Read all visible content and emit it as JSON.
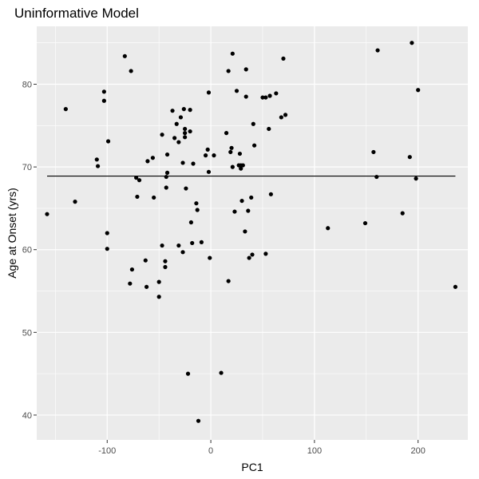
{
  "chart_data": {
    "type": "scatter",
    "title": "Uninformative Model",
    "xlabel": "PC1",
    "ylabel": "Age at Onset (yrs)",
    "xlim": [
      -168,
      248
    ],
    "ylim": [
      37,
      87
    ],
    "x_ticks": [
      -100,
      0,
      100,
      200
    ],
    "x_tick_labels": [
      "-100",
      "0",
      "100",
      "200"
    ],
    "y_ticks": [
      40,
      50,
      60,
      70,
      80
    ],
    "y_tick_labels": [
      "40",
      "50",
      "60",
      "70",
      "80"
    ],
    "grid": true,
    "background": "#ebebeb",
    "grid_color": "#ffffff",
    "point_color": "#000000",
    "fit_line": {
      "x": [
        -158,
        236
      ],
      "y": [
        68.9,
        68.9
      ],
      "color": "#000000"
    },
    "points": [
      [
        -158,
        64.3
      ],
      [
        -140,
        77.0
      ],
      [
        -131,
        65.8
      ],
      [
        -110,
        70.9
      ],
      [
        -109,
        70.1
      ],
      [
        -103,
        79.1
      ],
      [
        -103,
        78.0
      ],
      [
        -99,
        73.1
      ],
      [
        -100,
        62.0
      ],
      [
        -100,
        60.1
      ],
      [
        -83,
        83.4
      ],
      [
        -77,
        81.6
      ],
      [
        -78,
        55.9
      ],
      [
        -76,
        57.6
      ],
      [
        -72,
        68.7
      ],
      [
        -71,
        66.4
      ],
      [
        -69,
        68.4
      ],
      [
        -63,
        58.7
      ],
      [
        -62,
        55.5
      ],
      [
        -61,
        70.7
      ],
      [
        -56,
        71.1
      ],
      [
        -55,
        66.3
      ],
      [
        -50,
        56.1
      ],
      [
        -50,
        54.3
      ],
      [
        -47,
        73.9
      ],
      [
        -47,
        60.5
      ],
      [
        -44,
        57.9
      ],
      [
        -44,
        58.6
      ],
      [
        -43,
        68.8
      ],
      [
        -43,
        67.5
      ],
      [
        -42,
        69.3
      ],
      [
        -42,
        71.5
      ],
      [
        -37,
        76.8
      ],
      [
        -35,
        73.5
      ],
      [
        -33,
        75.2
      ],
      [
        -31,
        73.0
      ],
      [
        -31,
        60.5
      ],
      [
        -29,
        76.0
      ],
      [
        -27,
        59.7
      ],
      [
        -27,
        70.5
      ],
      [
        -26,
        77.0
      ],
      [
        -25,
        74.6
      ],
      [
        -25,
        74.1
      ],
      [
        -25,
        73.6
      ],
      [
        -24,
        67.4
      ],
      [
        -22,
        45.0
      ],
      [
        -20,
        74.3
      ],
      [
        -20,
        76.9
      ],
      [
        -19,
        63.3
      ],
      [
        -18,
        60.8
      ],
      [
        -17,
        70.4
      ],
      [
        -14,
        65.6
      ],
      [
        -13,
        64.8
      ],
      [
        -12,
        39.3
      ],
      [
        -9,
        60.9
      ],
      [
        -5,
        71.4
      ],
      [
        -3,
        72.1
      ],
      [
        -2,
        79.0
      ],
      [
        -2,
        69.4
      ],
      [
        -1,
        59.0
      ],
      [
        3,
        71.4
      ],
      [
        10,
        45.1
      ],
      [
        15,
        74.1
      ],
      [
        17,
        81.6
      ],
      [
        17,
        56.2
      ],
      [
        19,
        71.8
      ],
      [
        20,
        72.3
      ],
      [
        21,
        70.0
      ],
      [
        21,
        83.7
      ],
      [
        23,
        64.6
      ],
      [
        25,
        79.2
      ],
      [
        27,
        70.2
      ],
      [
        28,
        71.6
      ],
      [
        29,
        70.2
      ],
      [
        29,
        69.8
      ],
      [
        30,
        65.9
      ],
      [
        31,
        70.2
      ],
      [
        33,
        62.2
      ],
      [
        34,
        81.8
      ],
      [
        34,
        78.5
      ],
      [
        36,
        64.7
      ],
      [
        37,
        59.0
      ],
      [
        39,
        66.3
      ],
      [
        40,
        59.4
      ],
      [
        41,
        75.2
      ],
      [
        42,
        72.6
      ],
      [
        50,
        78.4
      ],
      [
        53,
        78.4
      ],
      [
        53,
        59.5
      ],
      [
        56,
        74.6
      ],
      [
        57,
        78.6
      ],
      [
        58,
        66.7
      ],
      [
        63,
        78.9
      ],
      [
        68,
        76.0
      ],
      [
        70,
        83.1
      ],
      [
        72,
        76.3
      ],
      [
        113,
        62.6
      ],
      [
        149,
        63.2
      ],
      [
        157,
        71.8
      ],
      [
        160,
        68.8
      ],
      [
        161,
        84.1
      ],
      [
        185,
        64.4
      ],
      [
        192,
        71.2
      ],
      [
        194,
        85.0
      ],
      [
        198,
        68.6
      ],
      [
        200,
        79.3
      ],
      [
        236,
        55.5
      ]
    ]
  }
}
